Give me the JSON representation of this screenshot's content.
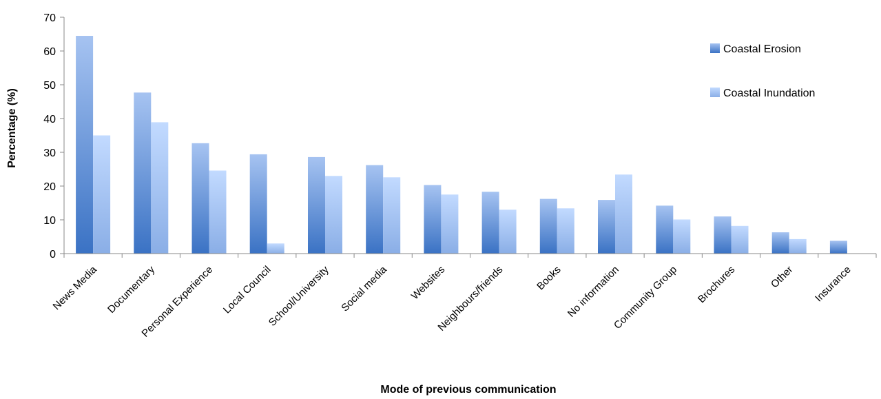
{
  "chart_data": {
    "type": "bar",
    "xlabel": "Mode of previous communication",
    "ylabel": "Percentage (%)",
    "ylim": [
      0,
      70
    ],
    "yticks": [
      0,
      10,
      20,
      30,
      40,
      50,
      60,
      70
    ],
    "grid": false,
    "legend_position": "top-right",
    "categories": [
      "News Media",
      "Documentary",
      "Personal Experience",
      "Local Council",
      "School/University",
      "Social media",
      "Websites",
      "Neighbours/friends",
      "Books",
      "No information",
      "Community Group",
      "Brochures",
      "Other",
      "Insurance"
    ],
    "series": [
      {
        "name": "Coastal Erosion",
        "color_top": "#a6c3f1",
        "color_bottom": "#3a72c4",
        "values": [
          64.5,
          47.7,
          32.7,
          29.4,
          28.6,
          26.2,
          20.3,
          18.3,
          16.2,
          15.9,
          14.2,
          11.0,
          6.3,
          3.8
        ]
      },
      {
        "name": "Coastal Inundation",
        "color_top": "#c2daff",
        "color_bottom": "#8aaee6",
        "values": [
          35.0,
          38.9,
          24.6,
          3.0,
          23.0,
          22.6,
          17.5,
          13.0,
          13.4,
          23.4,
          10.1,
          8.2,
          4.3,
          0
        ]
      }
    ]
  }
}
